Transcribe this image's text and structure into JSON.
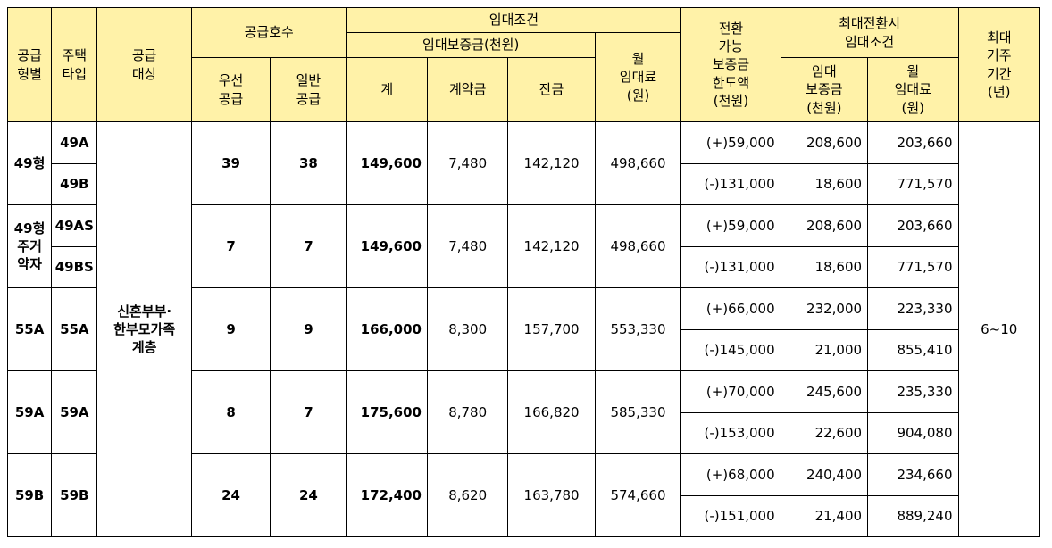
{
  "headers": {
    "supply_type": [
      "공급",
      "형별"
    ],
    "house_type": [
      "주택",
      "타입"
    ],
    "supply_target": [
      "공급",
      "대상"
    ],
    "supply_units": "공급호수",
    "priority_supply": [
      "우선",
      "공급"
    ],
    "general_supply": [
      "일반",
      "공급"
    ],
    "lease_terms": "임대조건",
    "lease_deposit": "임대보증금(천원)",
    "total": "계",
    "contract_deposit": "계약금",
    "balance": "잔금",
    "monthly_rent": [
      "월",
      "임대료",
      "(원)"
    ],
    "conversion_limit": [
      "전환",
      "가능",
      "보증금",
      "한도액",
      "(천원)"
    ],
    "max_conversion": [
      "최대전환시",
      "임대조건"
    ],
    "conv_deposit": [
      "임대",
      "보증금",
      "(천원)"
    ],
    "conv_rent": [
      "월",
      "임대료",
      "(원)"
    ],
    "max_residence": [
      "최대",
      "거주",
      "기간",
      "(년)"
    ]
  },
  "target": [
    "신혼부부·",
    "한부모가족",
    "계층"
  ],
  "period": "6~10",
  "groups": [
    {
      "supply_type": [
        "49형"
      ],
      "house_types": [
        "49A",
        "49B"
      ],
      "priority": "39",
      "general": "38",
      "total": "149,600",
      "contract": "7,480",
      "balance": "142,120",
      "rent": "498,660",
      "conversions": [
        {
          "limit": "(+)59,000",
          "deposit": "208,600",
          "rent": "203,660"
        },
        {
          "limit": "(-)131,000",
          "deposit": "18,600",
          "rent": "771,570"
        }
      ]
    },
    {
      "supply_type": [
        "49형",
        "주거",
        "약자"
      ],
      "house_types": [
        "49AS",
        "49BS"
      ],
      "priority": "7",
      "general": "7",
      "total": "149,600",
      "contract": "7,480",
      "balance": "142,120",
      "rent": "498,660",
      "conversions": [
        {
          "limit": "(+)59,000",
          "deposit": "208,600",
          "rent": "203,660"
        },
        {
          "limit": "(-)131,000",
          "deposit": "18,600",
          "rent": "771,570"
        }
      ]
    },
    {
      "supply_type": [
        "55A"
      ],
      "house_types": [
        "55A"
      ],
      "priority": "9",
      "general": "9",
      "total": "166,000",
      "contract": "8,300",
      "balance": "157,700",
      "rent": "553,330",
      "conversions": [
        {
          "limit": "(+)66,000",
          "deposit": "232,000",
          "rent": "223,330"
        },
        {
          "limit": "(-)145,000",
          "deposit": "21,000",
          "rent": "855,410"
        }
      ]
    },
    {
      "supply_type": [
        "59A"
      ],
      "house_types": [
        "59A"
      ],
      "priority": "8",
      "general": "7",
      "total": "175,600",
      "contract": "8,780",
      "balance": "166,820",
      "rent": "585,330",
      "conversions": [
        {
          "limit": "(+)70,000",
          "deposit": "245,600",
          "rent": "235,330"
        },
        {
          "limit": "(-)153,000",
          "deposit": "22,600",
          "rent": "904,080"
        }
      ]
    },
    {
      "supply_type": [
        "59B"
      ],
      "house_types": [
        "59B"
      ],
      "priority": "24",
      "general": "24",
      "total": "172,400",
      "contract": "8,620",
      "balance": "163,780",
      "rent": "574,660",
      "conversions": [
        {
          "limit": "(+)68,000",
          "deposit": "240,400",
          "rent": "234,660"
        },
        {
          "limit": "(-)151,000",
          "deposit": "21,400",
          "rent": "889,240"
        }
      ]
    }
  ],
  "colors": {
    "header_bg": "#fff2a8",
    "border": "#000000"
  }
}
